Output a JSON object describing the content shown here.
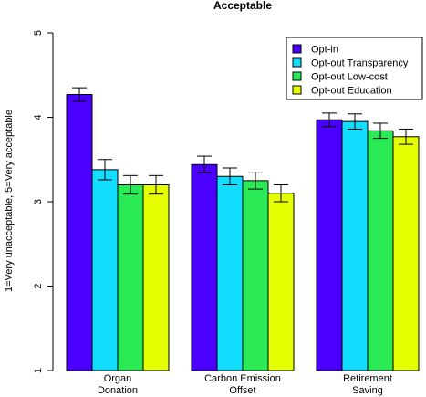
{
  "chart_data": {
    "type": "bar",
    "title": "Acceptable",
    "ylabel": "1=Very unacceptable, 5=Very acceptable",
    "xlabel": "",
    "ylim": [
      1,
      5
    ],
    "yticks": [
      "1",
      "2",
      "3",
      "4",
      "5"
    ],
    "categories": [
      [
        "Organ",
        "Donation"
      ],
      [
        "Carbon Emission",
        "Offset"
      ],
      [
        "Retirement",
        "Saving"
      ]
    ],
    "series": [
      {
        "name": "Opt-in",
        "color": "#4b00ff",
        "values": [
          4.27,
          3.44,
          3.97
        ],
        "err": [
          0.08,
          0.1,
          0.08
        ]
      },
      {
        "name": "Opt-out Transparency",
        "color": "#12ddff",
        "values": [
          3.38,
          3.3,
          3.95
        ],
        "err": [
          0.12,
          0.1,
          0.09
        ]
      },
      {
        "name": "Opt-out Low-cost",
        "color": "#2aea55",
        "values": [
          3.2,
          3.25,
          3.84
        ],
        "err": [
          0.11,
          0.1,
          0.09
        ]
      },
      {
        "name": "Opt-out Education",
        "color": "#e5ff00",
        "values": [
          3.2,
          3.1,
          3.77
        ],
        "err": [
          0.11,
          0.1,
          0.09
        ]
      }
    ],
    "error_bars": true,
    "grid": false,
    "legend_position": "top-right"
  }
}
